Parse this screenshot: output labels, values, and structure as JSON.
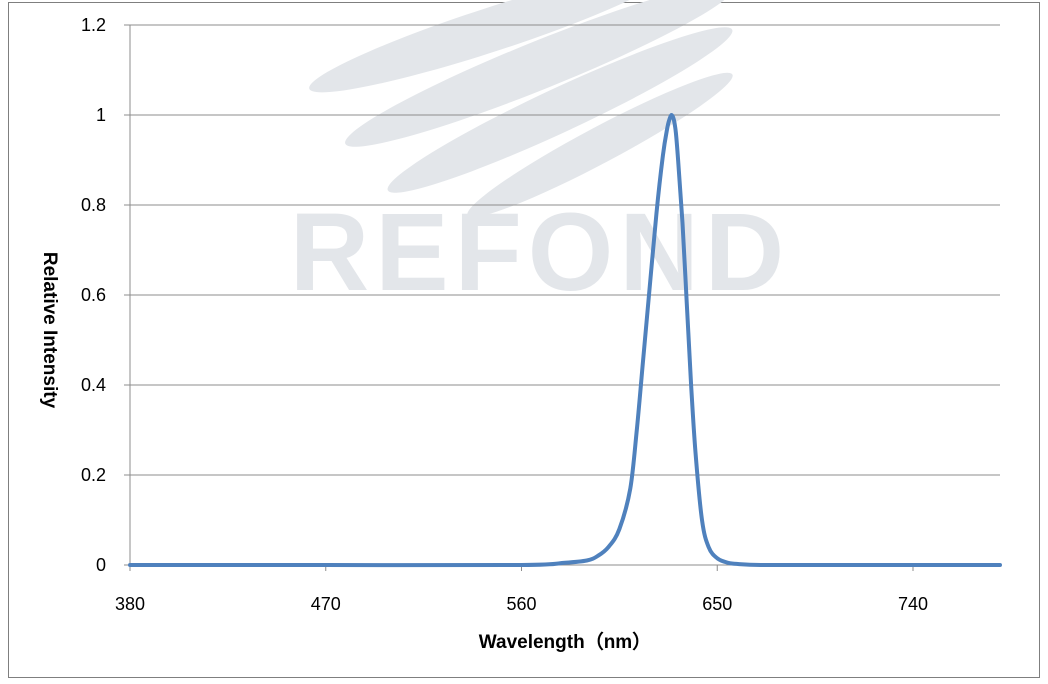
{
  "watermark": {
    "text": "REFOND",
    "color": "#e3e6ea"
  },
  "chart_data": {
    "type": "line",
    "xlabel": "Wavelength（nm）",
    "ylabel": "Relative  Intensity",
    "xlim": [
      380,
      780
    ],
    "ylim": [
      0,
      1.2
    ],
    "xticks": [
      380,
      470,
      560,
      650,
      740
    ],
    "yticks": [
      0,
      0.2,
      0.4,
      0.6,
      0.8,
      1,
      1.2
    ],
    "ytick_labels": [
      "0",
      "0.2",
      "0.4",
      "0.6",
      "0.8",
      "1",
      "1.2"
    ],
    "grid": "horizontal",
    "legend": "none",
    "series": [
      {
        "color": "#4f81bd",
        "x": [
          380,
          470,
          560,
          580,
          590,
          595,
          600,
          605,
          610,
          613,
          616,
          619,
          622,
          625,
          627,
          628,
          629,
          630,
          631,
          632,
          634,
          636,
          638,
          640,
          643,
          646,
          650,
          655,
          660,
          670,
          690,
          740,
          780
        ],
        "y": [
          0.0,
          0.0,
          0.0,
          0.005,
          0.01,
          0.02,
          0.04,
          0.08,
          0.17,
          0.3,
          0.46,
          0.62,
          0.78,
          0.91,
          0.97,
          0.99,
          1.0,
          0.99,
          0.96,
          0.9,
          0.76,
          0.58,
          0.4,
          0.25,
          0.1,
          0.04,
          0.015,
          0.005,
          0.002,
          0.0,
          0.0,
          0.0,
          0.0
        ]
      }
    ]
  }
}
